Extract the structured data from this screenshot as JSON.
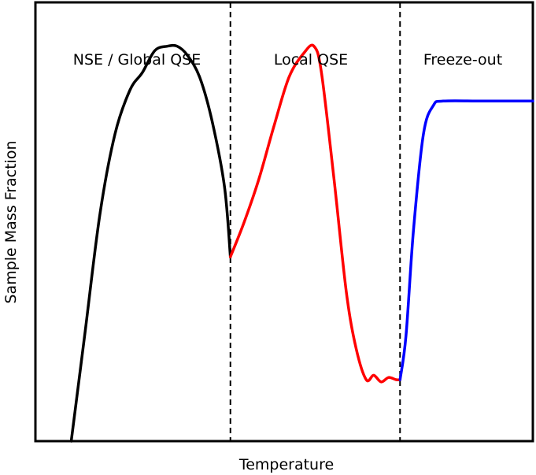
{
  "chart_data": {
    "type": "line",
    "title": "",
    "xlabel": "Temperature",
    "ylabel": "Sample Mass Fraction",
    "xlim": [
      0,
      100
    ],
    "ylim": [
      0,
      100
    ],
    "xticks": [],
    "yticks": [],
    "grid": false,
    "boundaries": [
      39.2,
      73.3
    ],
    "regions": [
      {
        "label": "NSE / Global QSE"
      },
      {
        "label": "Local QSE"
      },
      {
        "label": "Freeze-out"
      }
    ],
    "series": [
      {
        "name": "NSE / Global QSE",
        "color": "#000000",
        "points": [
          [
            7.2,
            0
          ],
          [
            10,
            25
          ],
          [
            13,
            52
          ],
          [
            16,
            70
          ],
          [
            19,
            80
          ],
          [
            21.5,
            84
          ],
          [
            24,
            89
          ],
          [
            26.5,
            90
          ],
          [
            28.5,
            90
          ],
          [
            30.5,
            88
          ],
          [
            33,
            83
          ],
          [
            35.5,
            73
          ],
          [
            38,
            58
          ],
          [
            39.2,
            42
          ]
        ]
      },
      {
        "name": "Local QSE",
        "color": "#ff0000",
        "points": [
          [
            39.2,
            42
          ],
          [
            42,
            50
          ],
          [
            45,
            60
          ],
          [
            48,
            72
          ],
          [
            51,
            83
          ],
          [
            54,
            88.5
          ],
          [
            56,
            90
          ],
          [
            57.5,
            84
          ],
          [
            60,
            60
          ],
          [
            62.5,
            34
          ],
          [
            64.5,
            21
          ],
          [
            66.5,
            14
          ],
          [
            68,
            15
          ],
          [
            69.5,
            13.5
          ],
          [
            71,
            14.5
          ],
          [
            72.5,
            14
          ],
          [
            73.3,
            14
          ]
        ]
      },
      {
        "name": "Freeze-out",
        "color": "#0000ff",
        "points": [
          [
            73.3,
            14
          ],
          [
            74.5,
            24
          ],
          [
            76,
            48
          ],
          [
            78,
            70
          ],
          [
            80,
            76.5
          ],
          [
            82,
            77.5
          ],
          [
            90,
            77.5
          ],
          [
            100,
            77.5
          ]
        ]
      }
    ]
  }
}
